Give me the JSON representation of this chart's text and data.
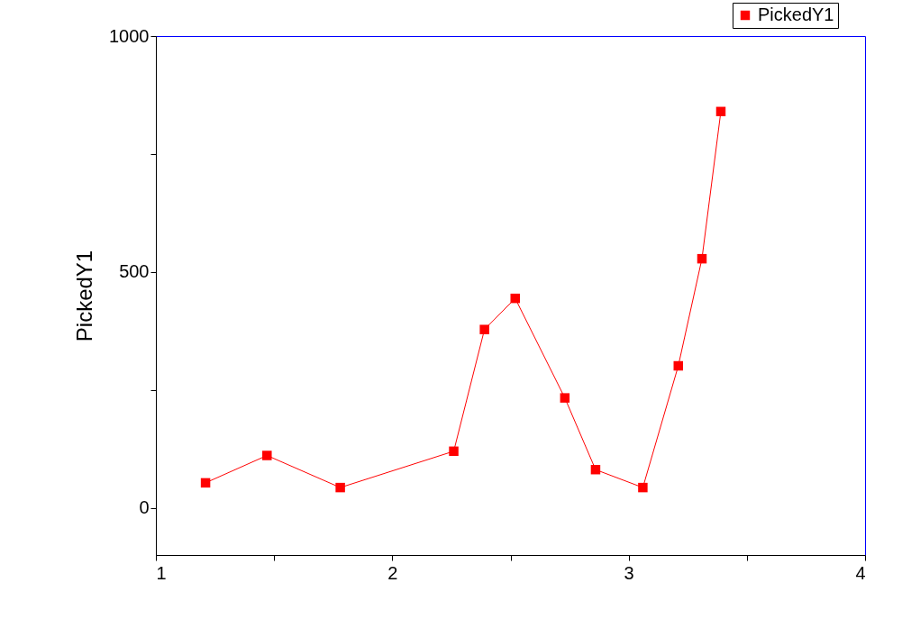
{
  "chart_data": {
    "type": "line",
    "ylabel": "PickedY1",
    "x": [
      1.21,
      1.47,
      1.78,
      2.26,
      2.39,
      2.52,
      2.73,
      2.86,
      3.06,
      3.21,
      3.31,
      3.39
    ],
    "series": [
      {
        "name": "PickedY1",
        "color": "#ff0000",
        "values": [
          53,
          111,
          43,
          120,
          378,
          444,
          233,
          81,
          43,
          301,
          528,
          840
        ]
      }
    ],
    "xlim": [
      1,
      4
    ],
    "xticks": [
      1,
      {
        "value": 1.5,
        "label": null
      },
      2,
      {
        "value": 2.5,
        "label": null
      },
      3,
      {
        "value": 3.5,
        "label": null
      },
      4
    ],
    "ylim": [
      -100,
      1000
    ],
    "yticks": [
      0,
      {
        "value": 250,
        "label": null
      },
      500,
      {
        "value": 750,
        "label": null
      },
      1000
    ],
    "grid": false,
    "legend": "top right",
    "marker": "square",
    "line_style": "solid"
  }
}
